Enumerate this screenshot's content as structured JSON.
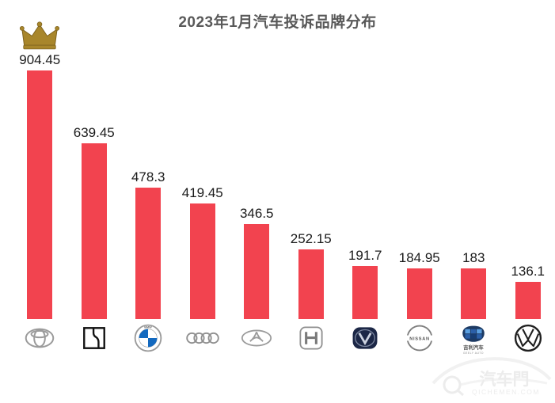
{
  "title": "2023年1月汽车投诉品牌分布",
  "chart_data": {
    "type": "bar",
    "title": "2023年1月汽车投诉品牌分布",
    "categories": [
      "Toyota 丰田",
      "Bestune 奔腾",
      "BMW 宝马",
      "Audi 奥迪",
      "Chery 奇瑞",
      "Honda 本田",
      "Changan 长安",
      "Nissan 日产",
      "Geely 吉利汽车",
      "Volkswagen 大众"
    ],
    "values": [
      904.45,
      639.45,
      478.3,
      419.45,
      346.5,
      252.15,
      191.7,
      184.95,
      183,
      136.1
    ],
    "bar_color": "#F2434F",
    "ylim": [
      0,
      950
    ],
    "grid": false,
    "legend": "none",
    "x_axis_style": "brand logos instead of text labels",
    "annotations": [
      "gold crown icon above first-ranked bar (Toyota, 904.45)"
    ]
  },
  "logos": {
    "bmw_text": "BMW",
    "nissan_text": "NISSAN",
    "geely_text_cn": "吉利汽车",
    "geely_text_en": "GEELY AUTO"
  },
  "watermark": {
    "site_name": "汽车門",
    "site_url": "QICHEMEN.COM"
  },
  "colors": {
    "title_text": "#595959",
    "value_text": "#1a1a1a",
    "crown_gold": "#A8862B",
    "watermark_gray": "#ededed"
  }
}
